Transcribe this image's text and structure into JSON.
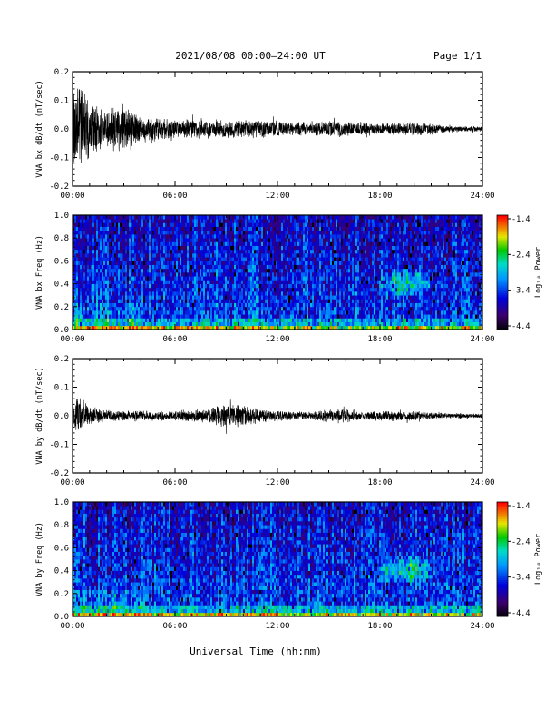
{
  "header": {
    "title": "2021/08/08  00:00–24:00 UT",
    "page": "Page 1/1"
  },
  "x_axis": {
    "label": "Universal Time (hh:mm)",
    "ticks": [
      "00:00",
      "06:00",
      "12:00",
      "18:00",
      "24:00"
    ]
  },
  "colorbar": {
    "label": "Log₁₀ Power",
    "ticks": [
      "-1.4",
      "-2.4",
      "-3.4",
      "-4.4"
    ]
  },
  "colors": {
    "background": "#ffffff",
    "trace": "#000000"
  },
  "chart_data": [
    {
      "type": "line",
      "ylabel": "VNA bx dB/dt (nT/sec)",
      "xlim": [
        "00:00",
        "24:00"
      ],
      "ylim": [
        -0.2,
        0.2
      ],
      "yticks": [
        "0.2",
        "0.1",
        "0.0",
        "-0.1",
        "-0.2"
      ],
      "xticks": [
        "00:00",
        "06:00",
        "12:00",
        "18:00",
        "24:00"
      ],
      "envelope": {
        "x_hours": [
          0,
          0.5,
          1,
          1.5,
          2,
          2.5,
          3,
          3.5,
          4,
          6,
          8,
          10,
          12,
          14,
          15.5,
          17,
          19,
          20,
          22,
          24
        ],
        "amplitude": [
          0.15,
          0.17,
          0.12,
          0.09,
          0.07,
          0.08,
          0.09,
          0.08,
          0.05,
          0.035,
          0.035,
          0.035,
          0.03,
          0.025,
          0.03,
          0.025,
          0.022,
          0.03,
          0.012,
          0.01
        ]
      }
    },
    {
      "type": "heatmap",
      "ylabel": "VNA bx Freq (Hz)",
      "xlim": [
        "00:00",
        "24:00"
      ],
      "ylim": [
        0.0,
        1.0
      ],
      "yticks": [
        "1.0",
        "0.8",
        "0.6",
        "0.4",
        "0.2",
        "0.0"
      ],
      "xticks": [
        "00:00",
        "06:00",
        "12:00",
        "18:00",
        "24:00"
      ],
      "colorbar": {
        "label": "Log₁₀ Power",
        "range": [
          -4.4,
          -1.4
        ],
        "ticks": [
          "-1.4",
          "-2.4",
          "-3.4",
          "-4.4"
        ]
      },
      "features": [
        {
          "kind": "low-frequency band",
          "x_hours": [
            0,
            24
          ],
          "freq_hz": [
            0.0,
            0.05
          ],
          "log_power": -2.4
        },
        {
          "kind": "patch",
          "x_hours": [
            18,
            21
          ],
          "freq_hz": [
            0.3,
            0.5
          ],
          "log_power": -3.0
        }
      ]
    },
    {
      "type": "line",
      "ylabel": "VNA by dB/dt (nT/sec)",
      "xlim": [
        "00:00",
        "24:00"
      ],
      "ylim": [
        -0.2,
        0.2
      ],
      "yticks": [
        "0.2",
        "0.1",
        "0.0",
        "-0.1",
        "-0.2"
      ],
      "xticks": [
        "00:00",
        "06:00",
        "12:00",
        "18:00",
        "24:00"
      ],
      "envelope": {
        "x_hours": [
          0,
          0.3,
          0.6,
          1,
          2,
          3,
          4,
          5,
          6,
          7,
          8,
          9,
          9.5,
          10,
          11,
          12,
          14,
          15,
          15.5,
          16,
          17,
          19,
          20,
          22,
          24
        ],
        "amplitude": [
          0.04,
          0.08,
          0.06,
          0.035,
          0.025,
          0.02,
          0.02,
          0.018,
          0.02,
          0.022,
          0.03,
          0.045,
          0.05,
          0.04,
          0.025,
          0.02,
          0.015,
          0.025,
          0.03,
          0.025,
          0.015,
          0.02,
          0.018,
          0.01,
          0.008
        ]
      }
    },
    {
      "type": "heatmap",
      "ylabel": "VNA by Freq (Hz)",
      "xlim": [
        "00:00",
        "24:00"
      ],
      "ylim": [
        0.0,
        1.0
      ],
      "yticks": [
        "1.0",
        "0.8",
        "0.6",
        "0.4",
        "0.2",
        "0.0"
      ],
      "xticks": [
        "00:00",
        "06:00",
        "12:00",
        "18:00",
        "24:00"
      ],
      "colorbar": {
        "label": "Log₁₀ Power",
        "range": [
          -4.4,
          -1.4
        ],
        "ticks": [
          "-1.4",
          "-2.4",
          "-3.4",
          "-4.4"
        ]
      },
      "features": [
        {
          "kind": "low-frequency band",
          "x_hours": [
            0,
            24
          ],
          "freq_hz": [
            0.0,
            0.05
          ],
          "log_power": -2.4
        },
        {
          "kind": "patch",
          "x_hours": [
            18,
            21
          ],
          "freq_hz": [
            0.3,
            0.5
          ],
          "log_power": -3.0
        }
      ]
    }
  ]
}
